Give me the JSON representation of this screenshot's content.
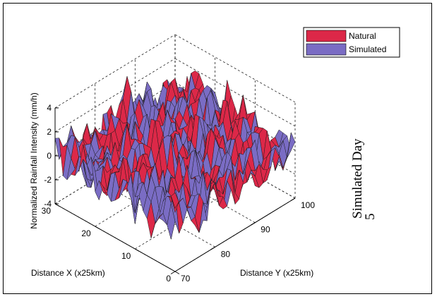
{
  "chart_data": {
    "type": "surface",
    "title": "",
    "xlabel": "Distance X (x25km)",
    "ylabel": "Distance Y (x25km)",
    "zlabel": "Normalized Rainfall Intensity (mm/h)",
    "x_ticks": [
      "0",
      "10",
      "20",
      "30"
    ],
    "y_ticks": [
      "70",
      "80",
      "90",
      "100"
    ],
    "z_ticks": [
      "-4",
      "-2",
      "0",
      "2",
      "4"
    ],
    "xlim": [
      0,
      30
    ],
    "ylim": [
      70,
      100
    ],
    "zlim": [
      -4,
      4
    ],
    "grid": true,
    "legend_position": "top-right",
    "series": [
      {
        "name": "Natural",
        "color": "#dc2848",
        "value_range": [
          -4,
          4
        ]
      },
      {
        "name": "Simulated",
        "color": "#7a6cc4",
        "value_range": [
          -4,
          4
        ]
      }
    ],
    "side_label": "Simulated Day",
    "side_value": "5"
  }
}
